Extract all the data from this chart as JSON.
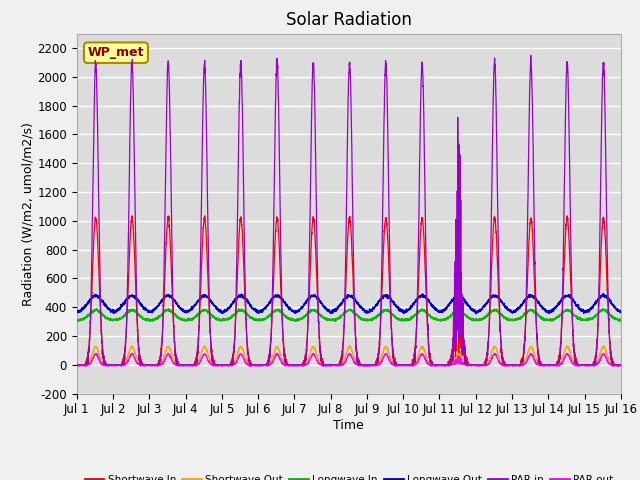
{
  "title": "Solar Radiation",
  "xlabel": "Time",
  "ylabel": "Radiation (W/m2, umol/m2/s)",
  "ylim": [
    -200,
    2300
  ],
  "yticks": [
    -200,
    0,
    200,
    400,
    600,
    800,
    1000,
    1200,
    1400,
    1600,
    1800,
    2000,
    2200
  ],
  "num_days": 15,
  "points_per_day": 288,
  "shortwave_in_peak": 1020,
  "shortwave_out_peak": 125,
  "longwave_in_base": 310,
  "longwave_in_amp": 70,
  "longwave_out_base": 360,
  "longwave_out_amp": 120,
  "par_in_peak": 2100,
  "par_out_peak": 75,
  "colors": {
    "shortwave_in": "#ff0000",
    "shortwave_out": "#ffa500",
    "longwave_in": "#00bb00",
    "longwave_out": "#0000cc",
    "par_in": "#9900cc",
    "par_out": "#ff00ff"
  },
  "legend_labels": [
    "Shortwave In",
    "Shortwave Out",
    "Longwave In",
    "Longwave Out",
    "PAR in",
    "PAR out"
  ],
  "annotation_text": "WP_met",
  "annotation_bg": "#ffff99",
  "annotation_border": "#aa8800",
  "plot_bg": "#dcdcdc",
  "fig_bg": "#f0f0f0",
  "grid_color": "#ffffff",
  "title_fontsize": 12,
  "label_fontsize": 9,
  "tick_fontsize": 8.5
}
